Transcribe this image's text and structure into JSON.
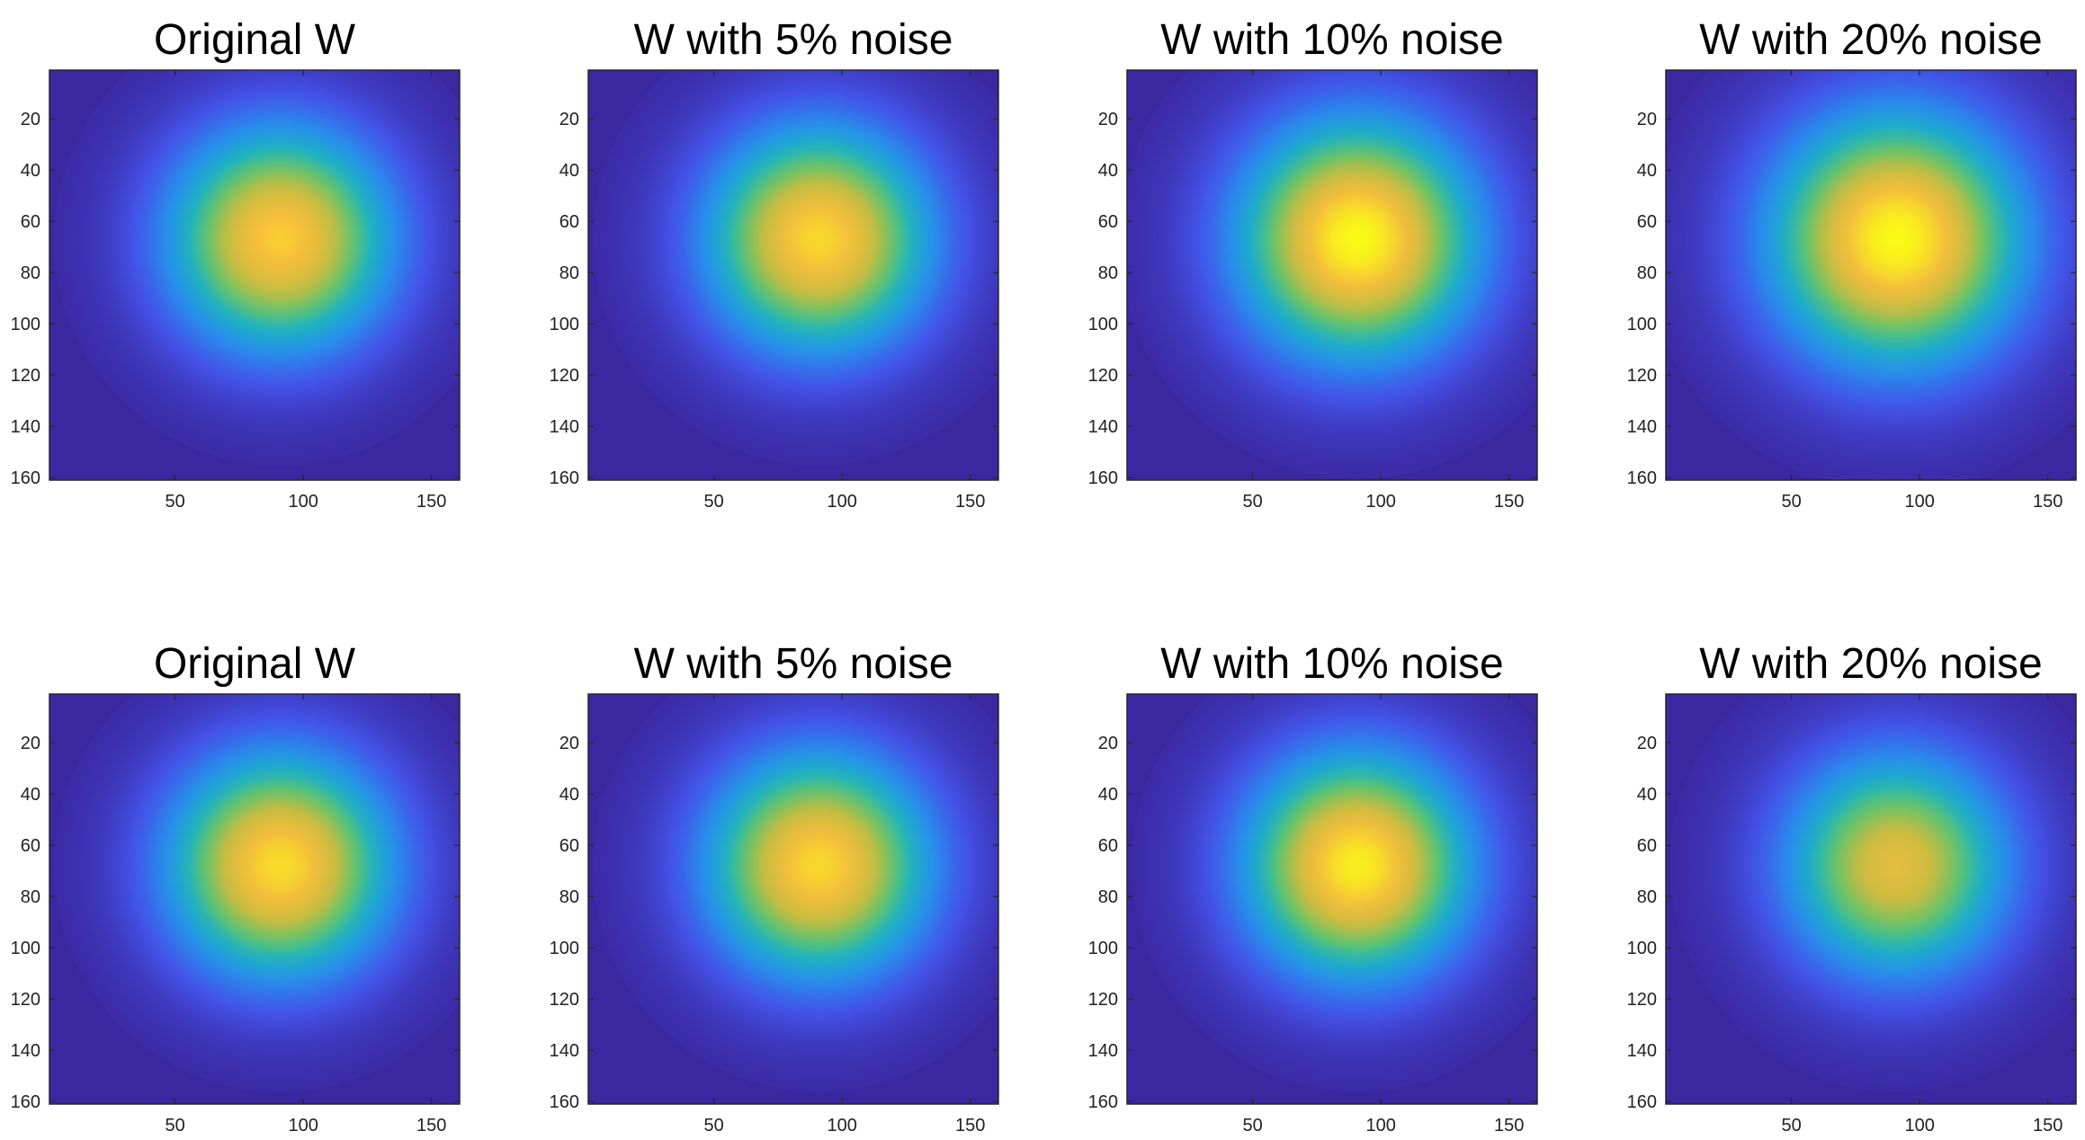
{
  "colors": {
    "background_field": "#3b27a0",
    "colormap": "parula"
  },
  "chart_data": [
    {
      "type": "heatmap",
      "title": "Original W",
      "xticks": [
        50,
        100,
        150
      ],
      "yticks": [
        20,
        40,
        60,
        80,
        100,
        120,
        140,
        160
      ],
      "xlim": [
        1,
        161
      ],
      "ylim": [
        1,
        161
      ],
      "y_reversed": true,
      "grid": false,
      "blob": {
        "center_x": 91,
        "center_y": 67,
        "peak_level": 0.9,
        "sigma": 34
      }
    },
    {
      "type": "heatmap",
      "title": "W with 5% noise",
      "xticks": [
        50,
        100,
        150
      ],
      "yticks": [
        20,
        40,
        60,
        80,
        100,
        120,
        140,
        160
      ],
      "xlim": [
        1,
        161
      ],
      "ylim": [
        1,
        161
      ],
      "y_reversed": true,
      "grid": false,
      "blob": {
        "center_x": 91,
        "center_y": 67,
        "peak_level": 0.92,
        "sigma": 34
      }
    },
    {
      "type": "heatmap",
      "title": "W with 10% noise",
      "xticks": [
        50,
        100,
        150
      ],
      "yticks": [
        20,
        40,
        60,
        80,
        100,
        120,
        140,
        160
      ],
      "xlim": [
        1,
        161
      ],
      "ylim": [
        1,
        161
      ],
      "y_reversed": true,
      "grid": false,
      "blob": {
        "center_x": 91,
        "center_y": 67,
        "peak_level": 1.0,
        "sigma": 36
      }
    },
    {
      "type": "heatmap",
      "title": "W with 20% noise",
      "xticks": [
        50,
        100,
        150
      ],
      "yticks": [
        20,
        40,
        60,
        80,
        100,
        120,
        140,
        160
      ],
      "xlim": [
        1,
        161
      ],
      "ylim": [
        1,
        161
      ],
      "y_reversed": true,
      "grid": false,
      "blob": {
        "center_x": 91,
        "center_y": 67,
        "peak_level": 1.0,
        "sigma": 38
      }
    },
    {
      "type": "heatmap",
      "title": "Original W",
      "xticks": [
        50,
        100,
        150
      ],
      "yticks": [
        20,
        40,
        60,
        80,
        100,
        120,
        140,
        160
      ],
      "xlim": [
        1,
        161
      ],
      "ylim": [
        1,
        161
      ],
      "y_reversed": true,
      "grid": false,
      "blob": {
        "center_x": 91,
        "center_y": 68,
        "peak_level": 0.93,
        "sigma": 34
      }
    },
    {
      "type": "heatmap",
      "title": "W with 5% noise",
      "xticks": [
        50,
        100,
        150
      ],
      "yticks": [
        20,
        40,
        60,
        80,
        100,
        120,
        140,
        160
      ],
      "xlim": [
        1,
        161
      ],
      "ylim": [
        1,
        161
      ],
      "y_reversed": true,
      "grid": false,
      "blob": {
        "center_x": 91,
        "center_y": 68,
        "peak_level": 0.92,
        "sigma": 34
      }
    },
    {
      "type": "heatmap",
      "title": "W with 10% noise",
      "xticks": [
        50,
        100,
        150
      ],
      "yticks": [
        20,
        40,
        60,
        80,
        100,
        120,
        140,
        160
      ],
      "xlim": [
        1,
        161
      ],
      "ylim": [
        1,
        161
      ],
      "y_reversed": true,
      "grid": false,
      "blob": {
        "center_x": 91,
        "center_y": 68,
        "peak_level": 0.97,
        "sigma": 34
      }
    },
    {
      "type": "heatmap",
      "title": "W with 20% noise",
      "xticks": [
        50,
        100,
        150
      ],
      "yticks": [
        20,
        40,
        60,
        80,
        100,
        120,
        140,
        160
      ],
      "xlim": [
        1,
        161
      ],
      "ylim": [
        1,
        161
      ],
      "y_reversed": true,
      "grid": false,
      "blob": {
        "center_x": 91,
        "center_y": 68,
        "peak_level": 0.8,
        "sigma": 34
      }
    }
  ]
}
